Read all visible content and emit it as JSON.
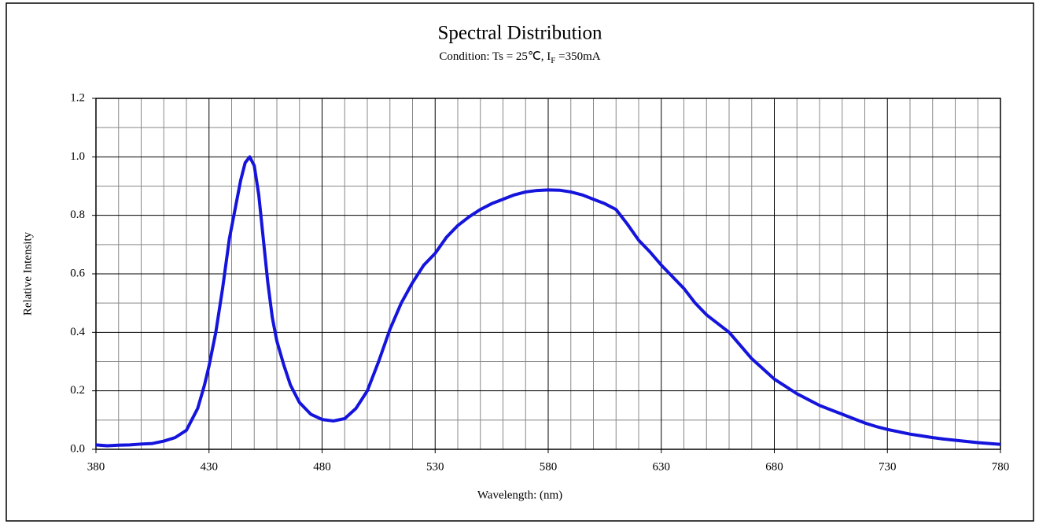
{
  "chart_data": {
    "type": "line",
    "title": "Spectral Distribution",
    "subtitle": [
      "Condition: Ts = 25℃, I",
      "F",
      " =350mA"
    ],
    "xlabel": "Wavelength:  (nm)",
    "ylabel": "Relative Intensity",
    "xlim": [
      380,
      780
    ],
    "ylim": [
      0,
      1.2
    ],
    "xticks": [
      380,
      430,
      480,
      530,
      580,
      630,
      680,
      730,
      780
    ],
    "yticks": [
      {
        "value": 0,
        "label": "0.0"
      },
      0.2,
      0.4,
      0.6,
      0.8,
      {
        "value": 1,
        "label": "1.0"
      },
      1.2
    ],
    "xminorticks": [
      390,
      400,
      410,
      420,
      440,
      450,
      460,
      470,
      490,
      500,
      510,
      520,
      540,
      550,
      560,
      570,
      590,
      600,
      610,
      620,
      640,
      650,
      660,
      670,
      690,
      700,
      710,
      720,
      740,
      750,
      760,
      770
    ],
    "yminorticks": [
      0.1,
      0.3,
      0.5,
      0.7,
      0.9,
      1.1
    ],
    "grid": true,
    "x": [
      380,
      385,
      390,
      395,
      400,
      405,
      410,
      415,
      420,
      425,
      428,
      430,
      433,
      436,
      439,
      442,
      444,
      446,
      448,
      450,
      452,
      454,
      456,
      458,
      460,
      463,
      466,
      470,
      475,
      480,
      485,
      490,
      495,
      500,
      505,
      510,
      515,
      520,
      525,
      530,
      535,
      540,
      545,
      550,
      555,
      560,
      565,
      570,
      575,
      580,
      585,
      590,
      595,
      600,
      605,
      610,
      615,
      620,
      625,
      630,
      635,
      640,
      645,
      650,
      655,
      660,
      665,
      670,
      675,
      680,
      685,
      690,
      695,
      700,
      705,
      710,
      715,
      720,
      725,
      730,
      735,
      740,
      745,
      750,
      755,
      760,
      765,
      770,
      775,
      780
    ],
    "series": [
      {
        "name": "Relative Intensity",
        "color": "#1414dc",
        "values": [
          0.015,
          0.012,
          0.014,
          0.015,
          0.018,
          0.02,
          0.028,
          0.04,
          0.065,
          0.14,
          0.22,
          0.285,
          0.4,
          0.55,
          0.72,
          0.84,
          0.92,
          0.98,
          1.0,
          0.97,
          0.87,
          0.72,
          0.57,
          0.45,
          0.37,
          0.29,
          0.22,
          0.16,
          0.12,
          0.102,
          0.097,
          0.105,
          0.14,
          0.2,
          0.3,
          0.41,
          0.5,
          0.57,
          0.63,
          0.67,
          0.725,
          0.765,
          0.795,
          0.82,
          0.84,
          0.855,
          0.87,
          0.88,
          0.885,
          0.887,
          0.886,
          0.88,
          0.87,
          0.855,
          0.84,
          0.82,
          0.77,
          0.715,
          0.675,
          0.63,
          0.59,
          0.55,
          0.5,
          0.46,
          0.43,
          0.4,
          0.355,
          0.31,
          0.275,
          0.24,
          0.215,
          0.19,
          0.17,
          0.15,
          0.135,
          0.12,
          0.105,
          0.09,
          0.078,
          0.068,
          0.06,
          0.052,
          0.046,
          0.04,
          0.035,
          0.031,
          0.027,
          0.023,
          0.02,
          0.017
        ]
      }
    ]
  }
}
